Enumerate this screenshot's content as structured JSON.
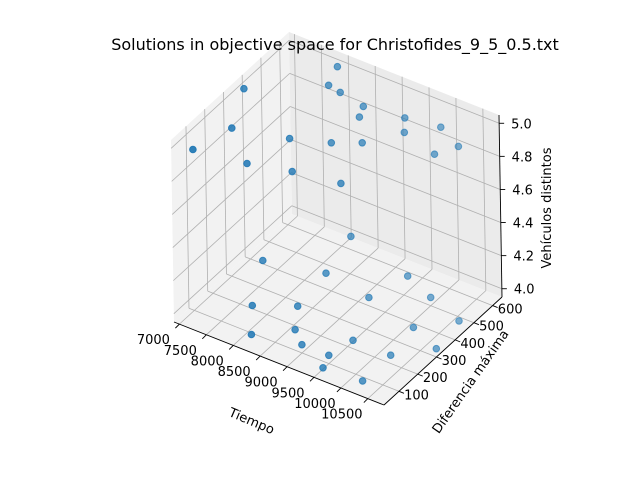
{
  "chart_data": {
    "type": "scatter3d",
    "title": "Solutions in objective space for Christofides_9_5_0.5.txt",
    "xlabel": "Tiempo",
    "ylabel": "Diferencia máxima",
    "zlabel": "Vehículos distintos",
    "x_ticks": [
      "7000",
      "7500",
      "8000",
      "8500",
      "9000",
      "9500",
      "10000",
      "10500"
    ],
    "y_ticks": [
      "100",
      "200",
      "300",
      "400",
      "500",
      "600"
    ],
    "z_ticks": [
      "4.0",
      "4.2",
      "4.4",
      "4.6",
      "4.8",
      "5.0"
    ],
    "xlim": [
      6900,
      10800
    ],
    "ylim": [
      20,
      650
    ],
    "zlim": [
      3.95,
      5.05
    ],
    "grid": true,
    "marker_color": "#1f77b4",
    "series": [
      {
        "points": [
          {
            "x": 7000,
            "y": 380,
            "z": 5.0
          },
          {
            "x": 7900,
            "y": 620,
            "z": 5.0
          },
          {
            "x": 8300,
            "y": 520,
            "z": 5.0
          },
          {
            "x": 8800,
            "y": 500,
            "z": 5.0
          },
          {
            "x": 9500,
            "y": 520,
            "z": 5.0
          },
          {
            "x": 10100,
            "y": 540,
            "z": 5.0
          },
          {
            "x": 10600,
            "y": 490,
            "z": 5.0
          },
          {
            "x": 8050,
            "y": 530,
            "z": 5.0
          },
          {
            "x": 8900,
            "y": 450,
            "z": 5.0
          },
          {
            "x": 9700,
            "y": 460,
            "z": 5.0
          },
          {
            "x": 10400,
            "y": 420,
            "z": 5.0
          },
          {
            "x": 7400,
            "y": 200,
            "z": 5.0
          },
          {
            "x": 8300,
            "y": 250,
            "z": 5.0
          },
          {
            "x": 8900,
            "y": 300,
            "z": 5.0
          },
          {
            "x": 9300,
            "y": 350,
            "z": 5.0
          },
          {
            "x": 7200,
            "y": 50,
            "z": 5.0
          },
          {
            "x": 8100,
            "y": 80,
            "z": 5.0
          },
          {
            "x": 8800,
            "y": 120,
            "z": 5.0
          },
          {
            "x": 9600,
            "y": 150,
            "z": 5.0
          },
          {
            "x": 8100,
            "y": 620,
            "z": 4.0
          },
          {
            "x": 9400,
            "y": 550,
            "z": 4.0
          },
          {
            "x": 10000,
            "y": 500,
            "z": 4.0
          },
          {
            "x": 10700,
            "y": 450,
            "z": 4.0
          },
          {
            "x": 7300,
            "y": 380,
            "z": 4.0
          },
          {
            "x": 8300,
            "y": 430,
            "z": 4.0
          },
          {
            "x": 9200,
            "y": 400,
            "z": 4.0
          },
          {
            "x": 10200,
            "y": 350,
            "z": 4.0
          },
          {
            "x": 10800,
            "y": 300,
            "z": 4.0
          },
          {
            "x": 8400,
            "y": 250,
            "z": 4.0
          },
          {
            "x": 9600,
            "y": 200,
            "z": 4.0
          },
          {
            "x": 10300,
            "y": 200,
            "z": 4.0
          },
          {
            "x": 7800,
            "y": 180,
            "z": 4.0
          },
          {
            "x": 8700,
            "y": 150,
            "z": 4.0
          },
          {
            "x": 9500,
            "y": 100,
            "z": 4.0
          },
          {
            "x": 10300,
            "y": 50,
            "z": 4.0
          },
          {
            "x": 8200,
            "y": 60,
            "z": 4.0
          },
          {
            "x": 9000,
            "y": 100,
            "z": 4.0
          },
          {
            "x": 9600,
            "y": 40,
            "z": 4.0
          }
        ]
      }
    ]
  }
}
